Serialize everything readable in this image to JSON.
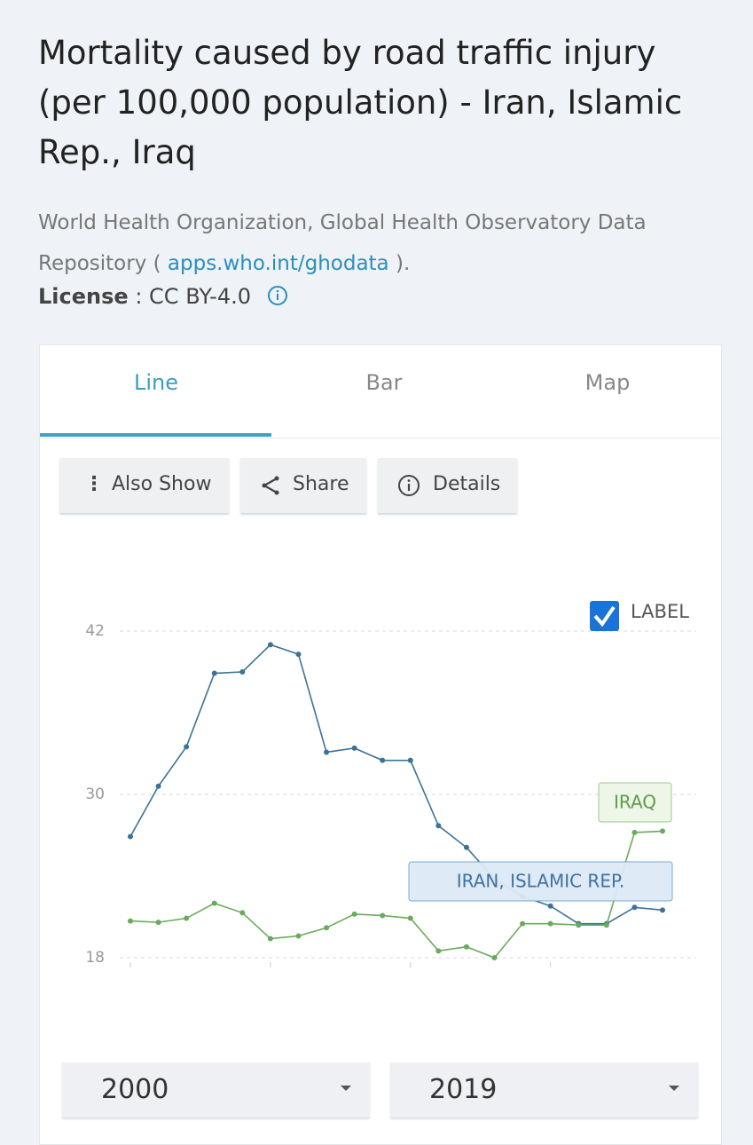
{
  "header": {
    "title": "Mortality caused by road traffic injury (per 100,000 population) - Iran, Islamic Rep., Iraq",
    "source_prefix": "World Health Organization, Global Health Observatory Data Repository (",
    "source_link": "apps.who.int/ghodata",
    "source_suffix": ").",
    "license_label": "License",
    "license_separator": ":",
    "license_value": "CC BY-4.0"
  },
  "tabs": [
    "Line",
    "Bar",
    "Map"
  ],
  "buttons": [
    "Also Show",
    "Share",
    "Details"
  ],
  "controls": {
    "label_toggle": "LABEL",
    "start_year": "2000",
    "end_year": "2019"
  },
  "chart_data": {
    "type": "line",
    "x": [
      2000,
      2001,
      2002,
      2003,
      2004,
      2005,
      2006,
      2007,
      2008,
      2009,
      2010,
      2011,
      2012,
      2013,
      2014,
      2015,
      2016,
      2017,
      2018,
      2019
    ],
    "xlim": [
      2000,
      2019
    ],
    "xticks": [
      2000,
      2005,
      2010,
      2015
    ],
    "ylim": [
      18,
      42
    ],
    "yticks": [
      18,
      30,
      42
    ],
    "grid": true,
    "series": [
      {
        "name": "IRAN, ISLAMIC REP.",
        "color": "#3b7398",
        "values": [
          26.9,
          30.6,
          33.5,
          38.9,
          39.0,
          41.0,
          40.3,
          33.1,
          33.4,
          32.5,
          32.5,
          27.7,
          26.1,
          23.8,
          22.5,
          21.8,
          20.5,
          20.5,
          21.7,
          21.5
        ]
      },
      {
        "name": "IRAQ",
        "color": "#6aab5b",
        "values": [
          20.7,
          20.6,
          20.9,
          22.0,
          21.3,
          19.4,
          19.6,
          20.2,
          21.2,
          21.1,
          20.9,
          18.5,
          18.8,
          18.0,
          20.5,
          20.5,
          20.4,
          20.4,
          27.2,
          27.3
        ]
      }
    ]
  }
}
